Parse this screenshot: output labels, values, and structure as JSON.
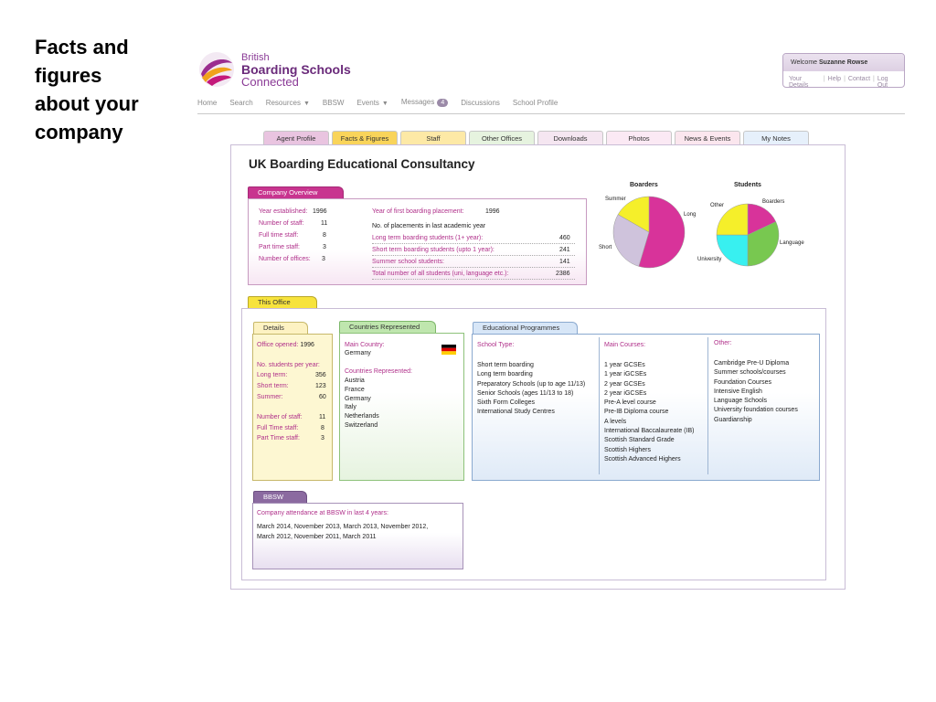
{
  "slide_title": [
    "Facts and",
    "figures",
    "about your",
    "company"
  ],
  "logo": {
    "line1": "British",
    "line2": "Boarding Schools",
    "line3": "Connected"
  },
  "welcome": {
    "prefix": "Welcome",
    "user": "Suzanne Rowse",
    "links": [
      "Your Details",
      "Help",
      "Contact",
      "Log Out"
    ]
  },
  "nav": {
    "home": "Home",
    "search": "Search",
    "resources": "Resources",
    "bbsw": "BBSW",
    "events": "Events",
    "messages": "Messages",
    "messages_count": "4",
    "discussions": "Discussions",
    "school_profile": "School Profile"
  },
  "tabs": [
    {
      "label": "Agent Profile",
      "bg": "#e9c4e0"
    },
    {
      "label": "Facts & Figures",
      "bg": "#f9d45a"
    },
    {
      "label": "Staff",
      "bg": "#fde9a6"
    },
    {
      "label": "Other Offices",
      "bg": "#e6f3df"
    },
    {
      "label": "Downloads",
      "bg": "#f5e6f1"
    },
    {
      "label": "Photos",
      "bg": "#fbe9f4"
    },
    {
      "label": "News & Events",
      "bg": "#fbe6ee"
    },
    {
      "label": "My Notes",
      "bg": "#e6f0fb"
    }
  ],
  "company_name": "UK Boarding Educational Consultancy",
  "overview": {
    "heading": "Company Overview",
    "left": [
      {
        "label": "Year established:",
        "value": "1996"
      },
      {
        "label": "Number of staff:",
        "value": "11"
      },
      {
        "label": "Full time staff:",
        "value": "8"
      },
      {
        "label": "Part time staff:",
        "value": "3"
      },
      {
        "label": "Number of offices:",
        "value": "3"
      }
    ],
    "first_placement_label": "Year of first boarding placement:",
    "first_placement_value": "1996",
    "placements_heading": "No. of placements in last academic year",
    "right": [
      {
        "label": "Long term boarding students (1+ year):",
        "value": "460"
      },
      {
        "label": "Short term boarding students (upto 1 year):",
        "value": "241"
      },
      {
        "label": "Summer school students:",
        "value": "141"
      },
      {
        "label": "Total number of all students (uni, language etc.):",
        "value": "2386"
      }
    ]
  },
  "chart_data": [
    {
      "type": "pie",
      "title": "Boarders",
      "categories": [
        "Long",
        "Short",
        "Summer"
      ],
      "values": [
        460,
        241,
        141
      ],
      "colors": [
        "#d8339a",
        "#cfc3dc",
        "#f5ef2a"
      ]
    },
    {
      "type": "pie",
      "title": "Students",
      "categories": [
        "Boarders",
        "Language",
        "University",
        "Other"
      ],
      "values": [
        18,
        32,
        25,
        25
      ],
      "colors": [
        "#d8339a",
        "#78c850",
        "#38f0f0",
        "#f5ef2a"
      ]
    }
  ],
  "this_office": {
    "heading": "This Office",
    "details": {
      "heading": "Details",
      "office_opened_label": "Office opened:",
      "office_opened_value": "1996",
      "students_heading": "No. students per year:",
      "students": [
        {
          "label": "Long term:",
          "value": "356"
        },
        {
          "label": "Short term:",
          "value": "123"
        },
        {
          "label": "Summer:",
          "value": "60"
        }
      ],
      "staff": [
        {
          "label": "Number of staff:",
          "value": "11"
        },
        {
          "label": "Full Time staff:",
          "value": "8"
        },
        {
          "label": "Part Time staff:",
          "value": "3"
        }
      ]
    },
    "countries": {
      "heading": "Countries Represented",
      "main_label": "Main Country:",
      "main_value": "Germany",
      "flag": "germany-flag",
      "represented_label": "Countries Represented:",
      "list": [
        "Austria",
        "France",
        "Germany",
        "Italy",
        "Netherlands",
        "Switzerland"
      ]
    },
    "programmes": {
      "heading": "Educational Programmes",
      "school_type_label": "School Type:",
      "school_types": [
        "Short term boarding",
        "Long term boarding",
        "Preparatory Schools (up to age 11/13)",
        "Senior Schools (ages 11/13 to 18)",
        "Sixth Form Colleges",
        "International Study Centres"
      ],
      "main_courses_label": "Main Courses:",
      "main_courses": [
        "1 year GCSEs",
        "1 year iGCSEs",
        "2 year GCSEs",
        "2 year iGCSEs",
        "Pre-A level course",
        "Pre-IB Diploma course",
        "A levels",
        "International Baccalaureate (IB)",
        "Scottish Standard Grade",
        "Scottish Highers",
        "Scottish Advanced Highers"
      ],
      "other_label": "Other:",
      "other": [
        "Cambridge Pre-U Diploma",
        "Summer schools/courses",
        "Foundation Courses",
        "Intensive English",
        "Language Schools",
        "University foundation courses",
        "Guardianship"
      ]
    },
    "bbsw": {
      "heading": "BBSW",
      "label": "Company attendance at BBSW in last 4 years:",
      "line1": "March 2014, November 2013, March 2013, November 2012,",
      "line2": "March 2012, November 2011,  March 2011"
    }
  }
}
